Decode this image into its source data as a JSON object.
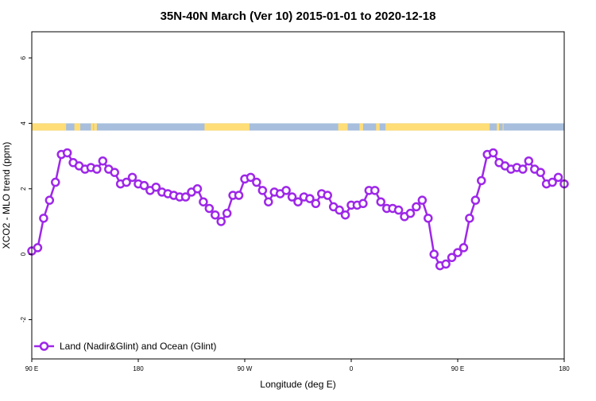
{
  "chart_data": {
    "type": "line",
    "title": "35N-40N March (Ver 10)   2015-01-01 to 2020-12-18",
    "xlabel": "Longitude (deg E)",
    "ylabel": "XCO2 - MLO trend (ppm)",
    "xlim": [
      90,
      540
    ],
    "ylim": [
      -3.2,
      6.8
    ],
    "x_ticks": [
      {
        "value": 90,
        "label": "90 E"
      },
      {
        "value": 180,
        "label": "180"
      },
      {
        "value": 270,
        "label": "90 W"
      },
      {
        "value": 360,
        "label": "0"
      },
      {
        "value": 450,
        "label": "90 E"
      },
      {
        "value": 540,
        "label": "180"
      }
    ],
    "y_ticks": [
      {
        "value": -2,
        "label": "-2"
      },
      {
        "value": 0,
        "label": "0"
      },
      {
        "value": 2,
        "label": "2"
      },
      {
        "value": 4,
        "label": "4"
      },
      {
        "value": 6,
        "label": "6"
      }
    ],
    "grid": false,
    "legend_position": "bottom-left",
    "land_mask": {
      "y_range": [
        3.78,
        4.0
      ],
      "land_color": "#FFDD77",
      "ocean_color": "#A7BEDD",
      "land_segments": [
        [
          90,
          119
        ],
        [
          126,
          131
        ],
        [
          145,
          142.5
        ],
        [
          140,
          142
        ],
        [
          236,
          274
        ],
        [
          349,
          357
        ],
        [
          367,
          370
        ],
        [
          381,
          384
        ],
        [
          389,
          477
        ],
        [
          483,
          485
        ],
        [
          488,
          488.5
        ]
      ]
    },
    "series": [
      {
        "name": "Land (Nadir&Glint) and Ocean (Glint)",
        "color": "#9E27E8",
        "x": [
          90,
          95,
          100,
          105,
          110,
          115,
          120,
          125,
          130,
          135,
          140,
          145,
          150,
          155,
          160,
          165,
          170,
          175,
          180,
          185,
          190,
          195,
          200,
          205,
          210,
          215,
          220,
          225,
          230,
          235,
          240,
          245,
          250,
          255,
          260,
          265,
          270,
          275,
          280,
          285,
          290,
          295,
          300,
          305,
          310,
          315,
          320,
          325,
          330,
          335,
          340,
          345,
          350,
          355,
          360,
          365,
          370,
          375,
          380,
          385,
          390,
          395,
          400,
          405,
          410,
          415,
          420,
          425,
          430,
          435,
          440,
          445,
          450,
          455,
          460,
          465,
          470,
          475,
          480,
          485,
          490,
          495,
          500,
          505,
          510,
          515,
          520,
          525,
          530,
          535,
          540
        ],
        "y": [
          0.1,
          0.2,
          1.1,
          1.65,
          2.2,
          3.05,
          3.1,
          2.8,
          2.7,
          2.6,
          2.65,
          2.6,
          2.85,
          2.6,
          2.5,
          2.15,
          2.2,
          2.35,
          2.15,
          2.1,
          1.95,
          2.05,
          1.9,
          1.85,
          1.8,
          1.75,
          1.75,
          1.9,
          2.0,
          1.6,
          1.4,
          1.2,
          1.0,
          1.25,
          1.8,
          1.8,
          2.3,
          2.35,
          2.2,
          1.95,
          1.6,
          1.9,
          1.85,
          1.95,
          1.75,
          1.6,
          1.75,
          1.7,
          1.55,
          1.85,
          1.8,
          1.45,
          1.35,
          1.2,
          1.5,
          1.5,
          1.55,
          1.95,
          1.95,
          1.6,
          1.4,
          1.4,
          1.35,
          1.15,
          1.25,
          1.45,
          1.65,
          1.1,
          0.0,
          -0.35,
          -0.3,
          -0.1,
          0.05,
          0.2,
          1.1,
          1.65,
          2.25,
          3.05,
          3.1,
          2.8,
          2.7,
          2.6,
          2.65,
          2.6,
          2.85,
          2.6,
          2.5,
          2.15,
          2.2,
          2.35,
          2.15
        ]
      }
    ]
  }
}
